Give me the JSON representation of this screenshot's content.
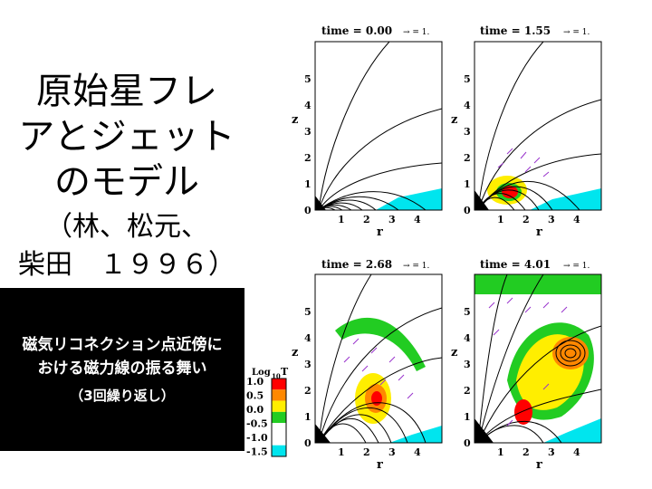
{
  "title": {
    "lines": [
      "原始星フレ",
      "アとジェット",
      "のモデル"
    ],
    "authors_line1": "（林、松元、",
    "authors_line2": "柴田　１９９６）"
  },
  "caption": {
    "line1": "磁気リコネクション点近傍に",
    "line2": "おける磁力線の振る舞い",
    "line3": "（3回繰り返し）"
  },
  "panels": [
    {
      "time": "time = 0.00",
      "arrow": "= 1."
    },
    {
      "time": "time = 1.55",
      "arrow": "= 1."
    },
    {
      "time": "time = 2.68",
      "arrow": "= 1."
    },
    {
      "time": "time = 4.01",
      "arrow": "= 1."
    }
  ],
  "axes": {
    "xlabel": "r",
    "ylabel": "z",
    "xticks": [
      "1",
      "2",
      "3",
      "4"
    ],
    "yticks": [
      "0",
      "1",
      "2",
      "3",
      "4",
      "5"
    ]
  },
  "colorbar": {
    "title": "Log",
    "sub": "10",
    "var": "T",
    "labels": [
      "1.0",
      "0.5",
      "0.0",
      "-0.5",
      "-1.0",
      "-1.5"
    ],
    "colors": [
      "#ff0000",
      "#ff8800",
      "#ffee00",
      "#22cc22",
      "#ffffff",
      "#ffffff",
      "#00e5ee"
    ]
  }
}
